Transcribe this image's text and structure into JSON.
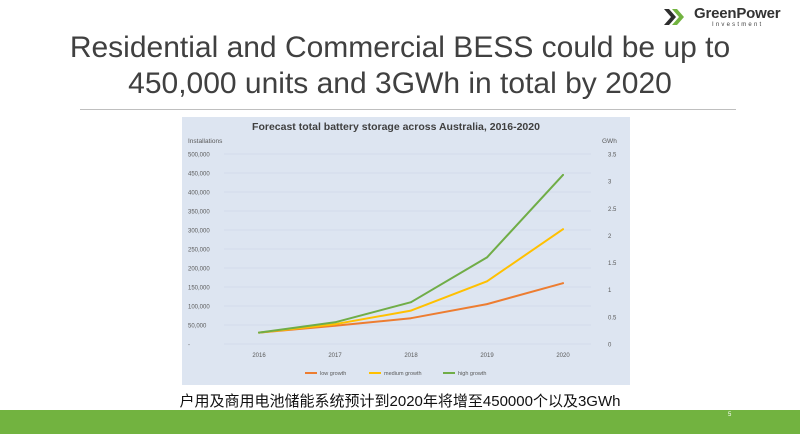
{
  "logo": {
    "name": "GreenPower",
    "sub": "Investment"
  },
  "slide": {
    "title_line1": "Residential and Commercial BESS could be up to",
    "title_line2": "450,000 units and 3GWh in total by 2020",
    "caption": "户用及商用电池储能系统预计到2020年将增至450000个以及3GWh",
    "page_number": "5"
  },
  "colors": {
    "brand_green": "#72b340",
    "low": "#ed7d31",
    "medium": "#ffc000",
    "high": "#70ad47",
    "chart_bg": "#dde5f1"
  },
  "chart_data": {
    "type": "line",
    "title": "Forecast total battery storage across Australia, 2016-2020",
    "ylabel_left": "Installations",
    "ylabel_right": "GWh",
    "x": [
      "2016",
      "2017",
      "2018",
      "2019",
      "2020"
    ],
    "ylim_left": [
      0,
      500000
    ],
    "ylim_right": [
      0,
      3.5
    ],
    "yticks_left": [
      "500,000",
      "450,000",
      "400,000",
      "350,000",
      "300,000",
      "250,000",
      "200,000",
      "150,000",
      "100,000",
      "50,000",
      "-"
    ],
    "yticks_right": [
      "3.5",
      "3",
      "2.5",
      "2",
      "1.5",
      "1",
      "0.5",
      "0"
    ],
    "grid": true,
    "legend_position": "bottom",
    "series": [
      {
        "name": "low growth",
        "color": "#ed7d31",
        "values": [
          30000,
          48000,
          68000,
          105000,
          160000
        ]
      },
      {
        "name": "medium growth",
        "color": "#ffc000",
        "values": [
          30000,
          52000,
          88000,
          165000,
          302000
        ]
      },
      {
        "name": "high growth",
        "color": "#70ad47",
        "values": [
          30000,
          57000,
          110000,
          228000,
          445000
        ]
      }
    ]
  }
}
